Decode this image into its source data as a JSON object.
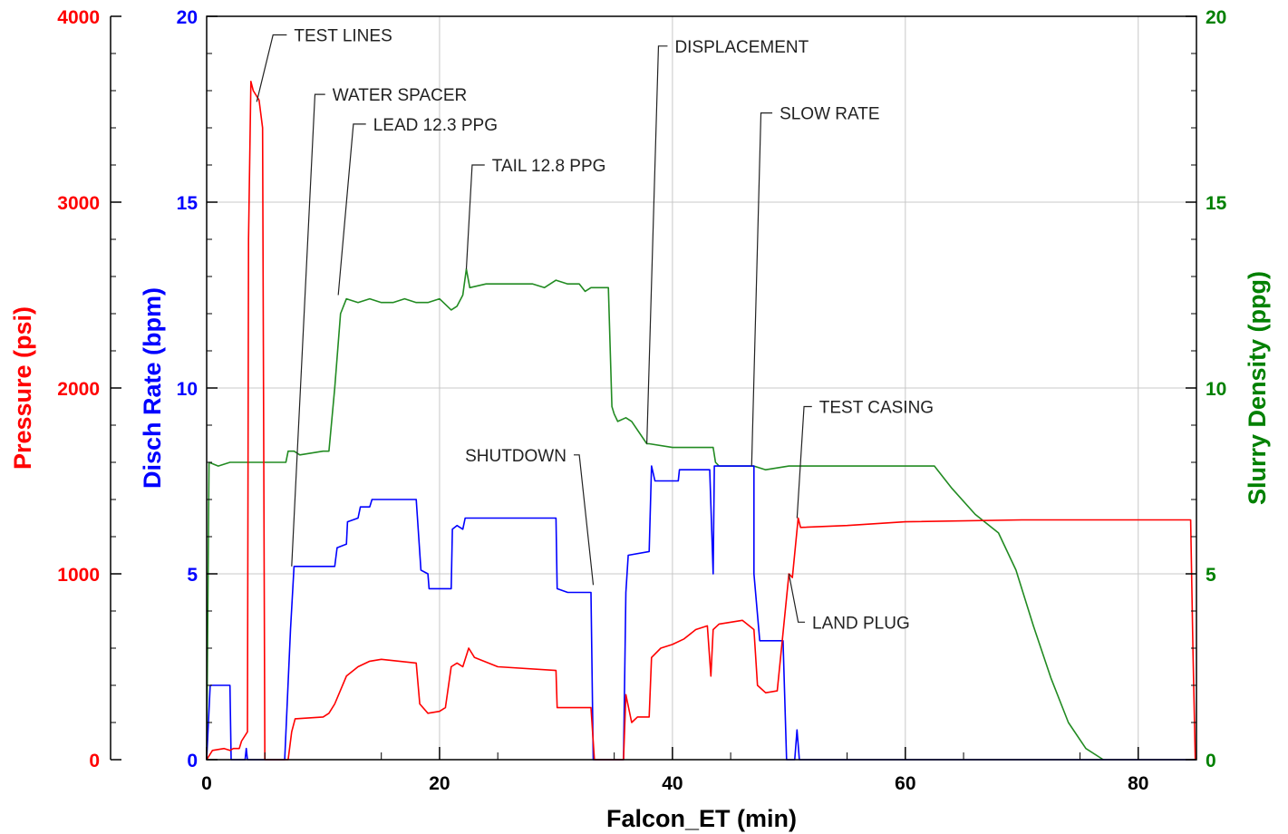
{
  "chart_data": {
    "type": "line",
    "title": "",
    "xlabel": "Falcon_ET (min)",
    "xlim": [
      0,
      85
    ],
    "x_ticks": [
      "0",
      "20",
      "40",
      "60",
      "80"
    ],
    "grid": true,
    "axes": {
      "pressure": {
        "label": "Pressure (psi)",
        "ylim": [
          0,
          4000
        ],
        "ticks": [
          "0",
          "1000",
          "2000",
          "3000",
          "4000"
        ],
        "color": "#ff0000"
      },
      "rate": {
        "label": "Disch Rate (bpm)",
        "ylim": [
          0,
          20
        ],
        "ticks": [
          "0",
          "5",
          "10",
          "15",
          "20"
        ],
        "color": "#0000ff"
      },
      "density": {
        "label": "Slurry Density (ppg)",
        "ylim": [
          0,
          20
        ],
        "ticks": [
          "0",
          "5",
          "10",
          "15",
          "20"
        ],
        "color": "#008000"
      }
    },
    "series": [
      {
        "axis": "density",
        "color": "#228b22",
        "points": [
          [
            0,
            0
          ],
          [
            0.2,
            8
          ],
          [
            1,
            7.9
          ],
          [
            2,
            8
          ],
          [
            6.8,
            8
          ],
          [
            7,
            8.3
          ],
          [
            7.5,
            8.3
          ],
          [
            8,
            8.2
          ],
          [
            10,
            8.3
          ],
          [
            10.5,
            8.3
          ],
          [
            11,
            10
          ],
          [
            11.5,
            12
          ],
          [
            12,
            12.4
          ],
          [
            13,
            12.3
          ],
          [
            14,
            12.4
          ],
          [
            15,
            12.3
          ],
          [
            16,
            12.3
          ],
          [
            17,
            12.4
          ],
          [
            18,
            12.3
          ],
          [
            19,
            12.3
          ],
          [
            20,
            12.4
          ],
          [
            21,
            12.1
          ],
          [
            21.5,
            12.2
          ],
          [
            22,
            12.5
          ],
          [
            22.3,
            13.2
          ],
          [
            22.6,
            12.7
          ],
          [
            24,
            12.8
          ],
          [
            26,
            12.8
          ],
          [
            28,
            12.8
          ],
          [
            29,
            12.7
          ],
          [
            30,
            12.9
          ],
          [
            31,
            12.8
          ],
          [
            32,
            12.8
          ],
          [
            32.5,
            12.6
          ],
          [
            33,
            12.7
          ],
          [
            34.5,
            12.7
          ],
          [
            34.8,
            9.5
          ],
          [
            35,
            9.3
          ],
          [
            35.3,
            9.1
          ],
          [
            36,
            9.2
          ],
          [
            36.5,
            9.1
          ],
          [
            37.8,
            8.5
          ],
          [
            38,
            8.5
          ],
          [
            40,
            8.4
          ],
          [
            42,
            8.4
          ],
          [
            43.5,
            8.4
          ],
          [
            43.7,
            8
          ],
          [
            44,
            7.9
          ],
          [
            46,
            7.9
          ],
          [
            47,
            7.9
          ],
          [
            48,
            7.8
          ],
          [
            50,
            7.9
          ],
          [
            55,
            7.9
          ],
          [
            60,
            7.9
          ],
          [
            62.5,
            7.9
          ],
          [
            64,
            7.3
          ],
          [
            66,
            6.6
          ],
          [
            68,
            6.1
          ],
          [
            69.5,
            5.1
          ],
          [
            71,
            3.6
          ],
          [
            72.5,
            2.2
          ],
          [
            74,
            1
          ],
          [
            75.5,
            0.3
          ],
          [
            77,
            0
          ]
        ]
      },
      {
        "axis": "rate",
        "color": "#0000ff",
        "points": [
          [
            0,
            0
          ],
          [
            0.3,
            2
          ],
          [
            2,
            2
          ],
          [
            2.1,
            0
          ],
          [
            3.3,
            0
          ],
          [
            3.4,
            0.3
          ],
          [
            3.5,
            0
          ],
          [
            6.7,
            0
          ],
          [
            7.2,
            3.5
          ],
          [
            7.5,
            5.2
          ],
          [
            10,
            5.2
          ],
          [
            11,
            5.2
          ],
          [
            11.2,
            5.7
          ],
          [
            12,
            5.8
          ],
          [
            12.1,
            6.4
          ],
          [
            13,
            6.5
          ],
          [
            13.2,
            6.8
          ],
          [
            14,
            6.8
          ],
          [
            14.2,
            7.0
          ],
          [
            18,
            7.0
          ],
          [
            18.4,
            5.1
          ],
          [
            19,
            5.0
          ],
          [
            19.1,
            4.6
          ],
          [
            20,
            4.6
          ],
          [
            21,
            4.6
          ],
          [
            21.1,
            6.2
          ],
          [
            21.5,
            6.3
          ],
          [
            22,
            6.2
          ],
          [
            22.2,
            6.5
          ],
          [
            23,
            6.5
          ],
          [
            26,
            6.5
          ],
          [
            29,
            6.5
          ],
          [
            30,
            6.5
          ],
          [
            30.1,
            4.6
          ],
          [
            31,
            4.5
          ],
          [
            33,
            4.5
          ],
          [
            33.2,
            0
          ],
          [
            35.8,
            0
          ],
          [
            36,
            4.5
          ],
          [
            36.2,
            5.5
          ],
          [
            38,
            5.6
          ],
          [
            38.2,
            7.9
          ],
          [
            38.5,
            7.5
          ],
          [
            40,
            7.5
          ],
          [
            40.5,
            7.5
          ],
          [
            40.6,
            7.8
          ],
          [
            43,
            7.8
          ],
          [
            43.2,
            7.8
          ],
          [
            43.5,
            5.0
          ],
          [
            43.6,
            7.9
          ],
          [
            46,
            7.9
          ],
          [
            47,
            7.9
          ],
          [
            47,
            5.0
          ],
          [
            47.5,
            3.2
          ],
          [
            48,
            3.2
          ],
          [
            49.5,
            3.2
          ],
          [
            49.8,
            0
          ],
          [
            50.5,
            0
          ],
          [
            50.7,
            0.8
          ],
          [
            50.9,
            0
          ],
          [
            60,
            0
          ],
          [
            70,
            0
          ],
          [
            80,
            0
          ],
          [
            84.9,
            0
          ]
        ]
      },
      {
        "axis": "pressure",
        "color": "#ff0000",
        "points": [
          [
            0,
            0
          ],
          [
            0.5,
            50
          ],
          [
            1.5,
            60
          ],
          [
            2,
            50
          ],
          [
            2.3,
            60
          ],
          [
            2.8,
            60
          ],
          [
            3,
            100
          ],
          [
            3.5,
            150
          ],
          [
            3.6,
            2800
          ],
          [
            3.8,
            3650
          ],
          [
            4,
            3600
          ],
          [
            4.5,
            3550
          ],
          [
            4.8,
            3400
          ],
          [
            5.0,
            0
          ],
          [
            7,
            0
          ],
          [
            7.3,
            150
          ],
          [
            7.6,
            220
          ],
          [
            10,
            230
          ],
          [
            10.5,
            250
          ],
          [
            11,
            300
          ],
          [
            12,
            450
          ],
          [
            13,
            500
          ],
          [
            14,
            530
          ],
          [
            15,
            540
          ],
          [
            18,
            520
          ],
          [
            18.3,
            300
          ],
          [
            19,
            250
          ],
          [
            20,
            260
          ],
          [
            20.5,
            280
          ],
          [
            21,
            500
          ],
          [
            21.5,
            520
          ],
          [
            22,
            500
          ],
          [
            22.5,
            600
          ],
          [
            23,
            550
          ],
          [
            25,
            500
          ],
          [
            30,
            480
          ],
          [
            30.1,
            280
          ],
          [
            31,
            280
          ],
          [
            33,
            280
          ],
          [
            33.3,
            0
          ],
          [
            35.8,
            0
          ],
          [
            36,
            350
          ],
          [
            36.5,
            200
          ],
          [
            37,
            230
          ],
          [
            38,
            230
          ],
          [
            38.2,
            550
          ],
          [
            39,
            600
          ],
          [
            40,
            620
          ],
          [
            41,
            650
          ],
          [
            42,
            700
          ],
          [
            43,
            720
          ],
          [
            43.3,
            450
          ],
          [
            43.5,
            700
          ],
          [
            44,
            730
          ],
          [
            46,
            750
          ],
          [
            47,
            700
          ],
          [
            47.3,
            400
          ],
          [
            48,
            360
          ],
          [
            49,
            370
          ],
          [
            50,
            1000
          ],
          [
            50.3,
            980
          ],
          [
            50.8,
            1300
          ],
          [
            51,
            1250
          ],
          [
            55,
            1260
          ],
          [
            60,
            1280
          ],
          [
            70,
            1290
          ],
          [
            80,
            1290
          ],
          [
            84.5,
            1290
          ],
          [
            84.7,
            600
          ],
          [
            84.9,
            0
          ]
        ]
      }
    ],
    "annotations": [
      {
        "text": "TEST LINES",
        "tip": [
          4.3,
          17.7
        ],
        "elbow": [
          5.7,
          19.5
        ],
        "text_at": [
          7.5,
          19.5
        ]
      },
      {
        "text": "WATER SPACER",
        "tip": [
          7.3,
          5.2
        ],
        "elbow": [
          9.3,
          17.9
        ],
        "text_at": [
          10.8,
          17.9
        ]
      },
      {
        "text": "LEAD 12.3 PPG",
        "tip": [
          11.3,
          12.5
        ],
        "elbow": [
          12.6,
          17.1
        ],
        "text_at": [
          14.3,
          17.1
        ]
      },
      {
        "text": "TAIL 12.8 PPG",
        "tip": [
          22.3,
          13.2
        ],
        "elbow": [
          22.8,
          16.0
        ],
        "text_at": [
          24.5,
          16.0
        ]
      },
      {
        "text": "DISPLACEMENT",
        "tip": [
          37.8,
          8.5
        ],
        "elbow": [
          38.8,
          19.2
        ],
        "text_at": [
          40.2,
          19.2
        ]
      },
      {
        "text": "SLOW RATE",
        "tip": [
          46.8,
          7.9
        ],
        "elbow": [
          47.6,
          17.4
        ],
        "text_at": [
          49.2,
          17.4
        ]
      },
      {
        "text": "TEST CASING",
        "tip": [
          50.7,
          6.5
        ],
        "elbow": [
          51.3,
          9.5
        ],
        "text_at": [
          52.6,
          9.5
        ]
      },
      {
        "text": "SHUTDOWN",
        "tip": [
          33.2,
          4.7
        ],
        "elbow": [
          32.0,
          8.2
        ],
        "text_at": [
          30.9,
          8.2
        ],
        "anchor": "end"
      },
      {
        "text": "LAND PLUG",
        "tip": [
          50.0,
          5.0
        ],
        "elbow": [
          50.8,
          3.7
        ],
        "text_at": [
          52.0,
          3.7
        ]
      }
    ]
  }
}
